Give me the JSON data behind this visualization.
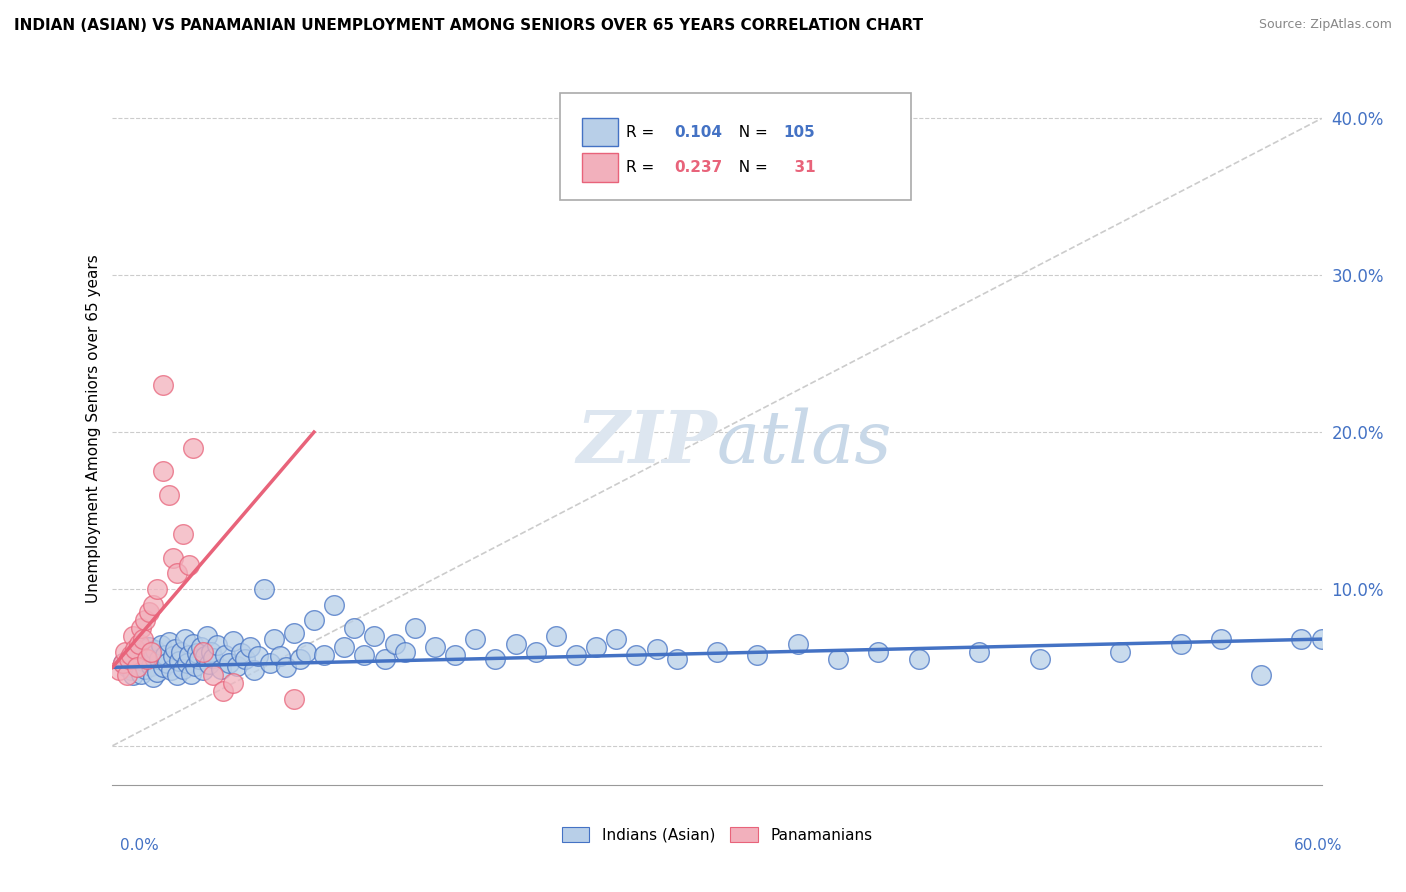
{
  "title": "INDIAN (ASIAN) VS PANAMANIAN UNEMPLOYMENT AMONG SENIORS OVER 65 YEARS CORRELATION CHART",
  "source": "Source: ZipAtlas.com",
  "ylabel": "Unemployment Among Seniors over 65 years",
  "xlim": [
    0.0,
    0.6
  ],
  "ylim": [
    -0.025,
    0.43
  ],
  "yticks": [
    0.0,
    0.1,
    0.2,
    0.3,
    0.4
  ],
  "ytick_labels": [
    "",
    "10.0%",
    "20.0%",
    "30.0%",
    "40.0%"
  ],
  "blue_color": "#4472c4",
  "pink_color": "#e8637a",
  "blue_fill": "#b8cfe8",
  "pink_fill": "#f2b0bc",
  "watermark_color": "#dde6f0",
  "blue_line_x": [
    0.0,
    0.6
  ],
  "blue_line_y": [
    0.05,
    0.068
  ],
  "pink_line_x": [
    0.0,
    0.1
  ],
  "pink_line_y": [
    0.05,
    0.2
  ],
  "ref_line_x": [
    0.0,
    0.6
  ],
  "ref_line_y": [
    0.0,
    0.4
  ],
  "blue_scatter_x": [
    0.005,
    0.007,
    0.008,
    0.009,
    0.01,
    0.01,
    0.011,
    0.012,
    0.013,
    0.014,
    0.015,
    0.015,
    0.016,
    0.017,
    0.018,
    0.019,
    0.02,
    0.02,
    0.021,
    0.022,
    0.023,
    0.024,
    0.025,
    0.026,
    0.027,
    0.028,
    0.029,
    0.03,
    0.031,
    0.032,
    0.033,
    0.034,
    0.035,
    0.036,
    0.037,
    0.038,
    0.039,
    0.04,
    0.041,
    0.042,
    0.043,
    0.044,
    0.045,
    0.046,
    0.047,
    0.048,
    0.049,
    0.05,
    0.052,
    0.054,
    0.056,
    0.058,
    0.06,
    0.062,
    0.064,
    0.066,
    0.068,
    0.07,
    0.072,
    0.075,
    0.078,
    0.08,
    0.083,
    0.086,
    0.09,
    0.093,
    0.096,
    0.1,
    0.105,
    0.11,
    0.115,
    0.12,
    0.125,
    0.13,
    0.135,
    0.14,
    0.145,
    0.15,
    0.16,
    0.17,
    0.18,
    0.19,
    0.2,
    0.21,
    0.22,
    0.23,
    0.24,
    0.25,
    0.26,
    0.27,
    0.28,
    0.3,
    0.32,
    0.34,
    0.36,
    0.38,
    0.4,
    0.43,
    0.46,
    0.5,
    0.53,
    0.55,
    0.57,
    0.59,
    0.6
  ],
  "blue_scatter_y": [
    0.053,
    0.05,
    0.055,
    0.048,
    0.057,
    0.045,
    0.06,
    0.052,
    0.058,
    0.046,
    0.054,
    0.062,
    0.049,
    0.056,
    0.063,
    0.051,
    0.059,
    0.044,
    0.061,
    0.047,
    0.055,
    0.064,
    0.05,
    0.058,
    0.053,
    0.066,
    0.048,
    0.057,
    0.062,
    0.045,
    0.054,
    0.06,
    0.049,
    0.068,
    0.053,
    0.058,
    0.046,
    0.065,
    0.051,
    0.059,
    0.055,
    0.063,
    0.048,
    0.057,
    0.07,
    0.052,
    0.06,
    0.056,
    0.064,
    0.049,
    0.058,
    0.053,
    0.067,
    0.051,
    0.059,
    0.055,
    0.063,
    0.048,
    0.057,
    0.1,
    0.053,
    0.068,
    0.057,
    0.05,
    0.072,
    0.055,
    0.06,
    0.08,
    0.058,
    0.09,
    0.063,
    0.075,
    0.058,
    0.07,
    0.055,
    0.065,
    0.06,
    0.075,
    0.063,
    0.058,
    0.068,
    0.055,
    0.065,
    0.06,
    0.07,
    0.058,
    0.063,
    0.068,
    0.058,
    0.062,
    0.055,
    0.06,
    0.058,
    0.065,
    0.055,
    0.06,
    0.055,
    0.06,
    0.055,
    0.06,
    0.065,
    0.068,
    0.045,
    0.068,
    0.068
  ],
  "pink_scatter_x": [
    0.003,
    0.005,
    0.006,
    0.007,
    0.008,
    0.009,
    0.01,
    0.011,
    0.012,
    0.013,
    0.014,
    0.015,
    0.016,
    0.017,
    0.018,
    0.019,
    0.02,
    0.022,
    0.025,
    0.025,
    0.028,
    0.03,
    0.032,
    0.035,
    0.038,
    0.04,
    0.045,
    0.05,
    0.055,
    0.06,
    0.09
  ],
  "pink_scatter_y": [
    0.048,
    0.053,
    0.06,
    0.045,
    0.055,
    0.058,
    0.07,
    0.062,
    0.05,
    0.065,
    0.075,
    0.068,
    0.08,
    0.055,
    0.085,
    0.06,
    0.09,
    0.1,
    0.175,
    0.23,
    0.16,
    0.12,
    0.11,
    0.135,
    0.115,
    0.19,
    0.06,
    0.045,
    0.035,
    0.04,
    0.03
  ],
  "legend_R_blue": "0.104",
  "legend_N_blue": "105",
  "legend_R_pink": "0.237",
  "legend_N_pink": "31"
}
